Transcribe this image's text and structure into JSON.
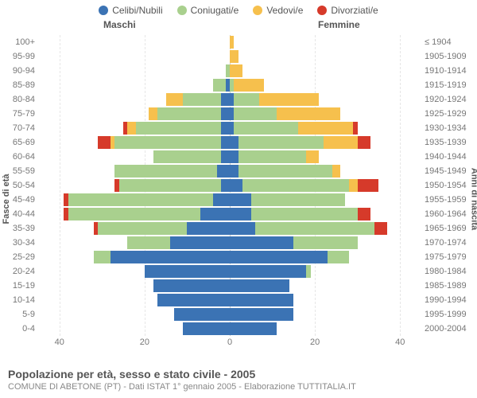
{
  "chart": {
    "type": "population-pyramid",
    "legend": [
      {
        "label": "Celibi/Nubili",
        "color": "#3b73b4"
      },
      {
        "label": "Coniugati/e",
        "color": "#a9d08e"
      },
      {
        "label": "Vedovi/e",
        "color": "#f6c04d"
      },
      {
        "label": "Divorziati/e",
        "color": "#d63a2a"
      }
    ],
    "header_male": "Maschi",
    "header_female": "Femmine",
    "y_left_title": "Fasce di età",
    "y_right_title": "Anni di nascita",
    "x_ticks": [
      40,
      20,
      0,
      20,
      40
    ],
    "x_max": 45,
    "grid_at": [
      40,
      20,
      0,
      20,
      40
    ],
    "background_color": "#ffffff",
    "centerline_color": "#cccccc",
    "grid_color": "#e6e6e6",
    "title": "Popolazione per età, sesso e stato civile - 2005",
    "subtitle": "COMUNE DI ABETONE (PT) - Dati ISTAT 1° gennaio 2005 - Elaborazione TUTTITALIA.IT",
    "rows": [
      {
        "age": "100+",
        "birth": "≤ 1904",
        "m": [
          0,
          0,
          0,
          0
        ],
        "f": [
          0,
          0,
          1,
          0
        ]
      },
      {
        "age": "95-99",
        "birth": "1905-1909",
        "m": [
          0,
          0,
          0,
          0
        ],
        "f": [
          0,
          0,
          2,
          0
        ]
      },
      {
        "age": "90-94",
        "birth": "1910-1914",
        "m": [
          0,
          1,
          0,
          0
        ],
        "f": [
          0,
          0,
          3,
          0
        ]
      },
      {
        "age": "85-89",
        "birth": "1915-1919",
        "m": [
          1,
          3,
          0,
          0
        ],
        "f": [
          0,
          1,
          7,
          0
        ]
      },
      {
        "age": "80-84",
        "birth": "1920-1924",
        "m": [
          2,
          9,
          4,
          0
        ],
        "f": [
          1,
          6,
          14,
          0
        ]
      },
      {
        "age": "75-79",
        "birth": "1925-1929",
        "m": [
          2,
          15,
          2,
          0
        ],
        "f": [
          1,
          10,
          15,
          0
        ]
      },
      {
        "age": "70-74",
        "birth": "1930-1934",
        "m": [
          2,
          20,
          2,
          1
        ],
        "f": [
          1,
          15,
          13,
          1
        ]
      },
      {
        "age": "65-69",
        "birth": "1935-1939",
        "m": [
          2,
          25,
          1,
          3
        ],
        "f": [
          2,
          20,
          8,
          3
        ]
      },
      {
        "age": "60-64",
        "birth": "1940-1944",
        "m": [
          2,
          16,
          0,
          0
        ],
        "f": [
          2,
          16,
          3,
          0
        ]
      },
      {
        "age": "55-59",
        "birth": "1945-1949",
        "m": [
          3,
          24,
          0,
          0
        ],
        "f": [
          2,
          22,
          2,
          0
        ]
      },
      {
        "age": "50-54",
        "birth": "1950-1954",
        "m": [
          2,
          24,
          0,
          1
        ],
        "f": [
          3,
          25,
          2,
          5
        ]
      },
      {
        "age": "45-49",
        "birth": "1955-1959",
        "m": [
          4,
          34,
          0,
          1
        ],
        "f": [
          5,
          22,
          0,
          0
        ]
      },
      {
        "age": "40-44",
        "birth": "1960-1964",
        "m": [
          7,
          31,
          0,
          1
        ],
        "f": [
          5,
          25,
          0,
          3
        ]
      },
      {
        "age": "35-39",
        "birth": "1965-1969",
        "m": [
          10,
          21,
          0,
          1
        ],
        "f": [
          6,
          28,
          0,
          3
        ]
      },
      {
        "age": "30-34",
        "birth": "1970-1974",
        "m": [
          14,
          10,
          0,
          0
        ],
        "f": [
          15,
          15,
          0,
          0
        ]
      },
      {
        "age": "25-29",
        "birth": "1975-1979",
        "m": [
          28,
          4,
          0,
          0
        ],
        "f": [
          23,
          5,
          0,
          0
        ]
      },
      {
        "age": "20-24",
        "birth": "1980-1984",
        "m": [
          20,
          0,
          0,
          0
        ],
        "f": [
          18,
          1,
          0,
          0
        ]
      },
      {
        "age": "15-19",
        "birth": "1985-1989",
        "m": [
          18,
          0,
          0,
          0
        ],
        "f": [
          14,
          0,
          0,
          0
        ]
      },
      {
        "age": "10-14",
        "birth": "1990-1994",
        "m": [
          17,
          0,
          0,
          0
        ],
        "f": [
          15,
          0,
          0,
          0
        ]
      },
      {
        "age": "5-9",
        "birth": "1995-1999",
        "m": [
          13,
          0,
          0,
          0
        ],
        "f": [
          15,
          0,
          0,
          0
        ]
      },
      {
        "age": "0-4",
        "birth": "2000-2004",
        "m": [
          11,
          0,
          0,
          0
        ],
        "f": [
          11,
          0,
          0,
          0
        ]
      }
    ]
  }
}
